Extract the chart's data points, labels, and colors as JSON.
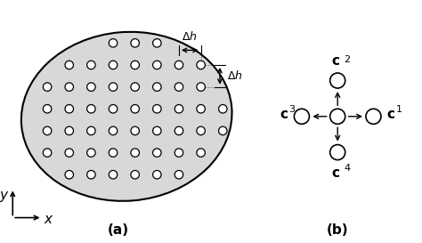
{
  "fig_width": 4.74,
  "fig_height": 2.73,
  "dpi": 100,
  "bg_color": "#ffffff",
  "part_a_label": "(a)",
  "part_b_label": "(b)"
}
